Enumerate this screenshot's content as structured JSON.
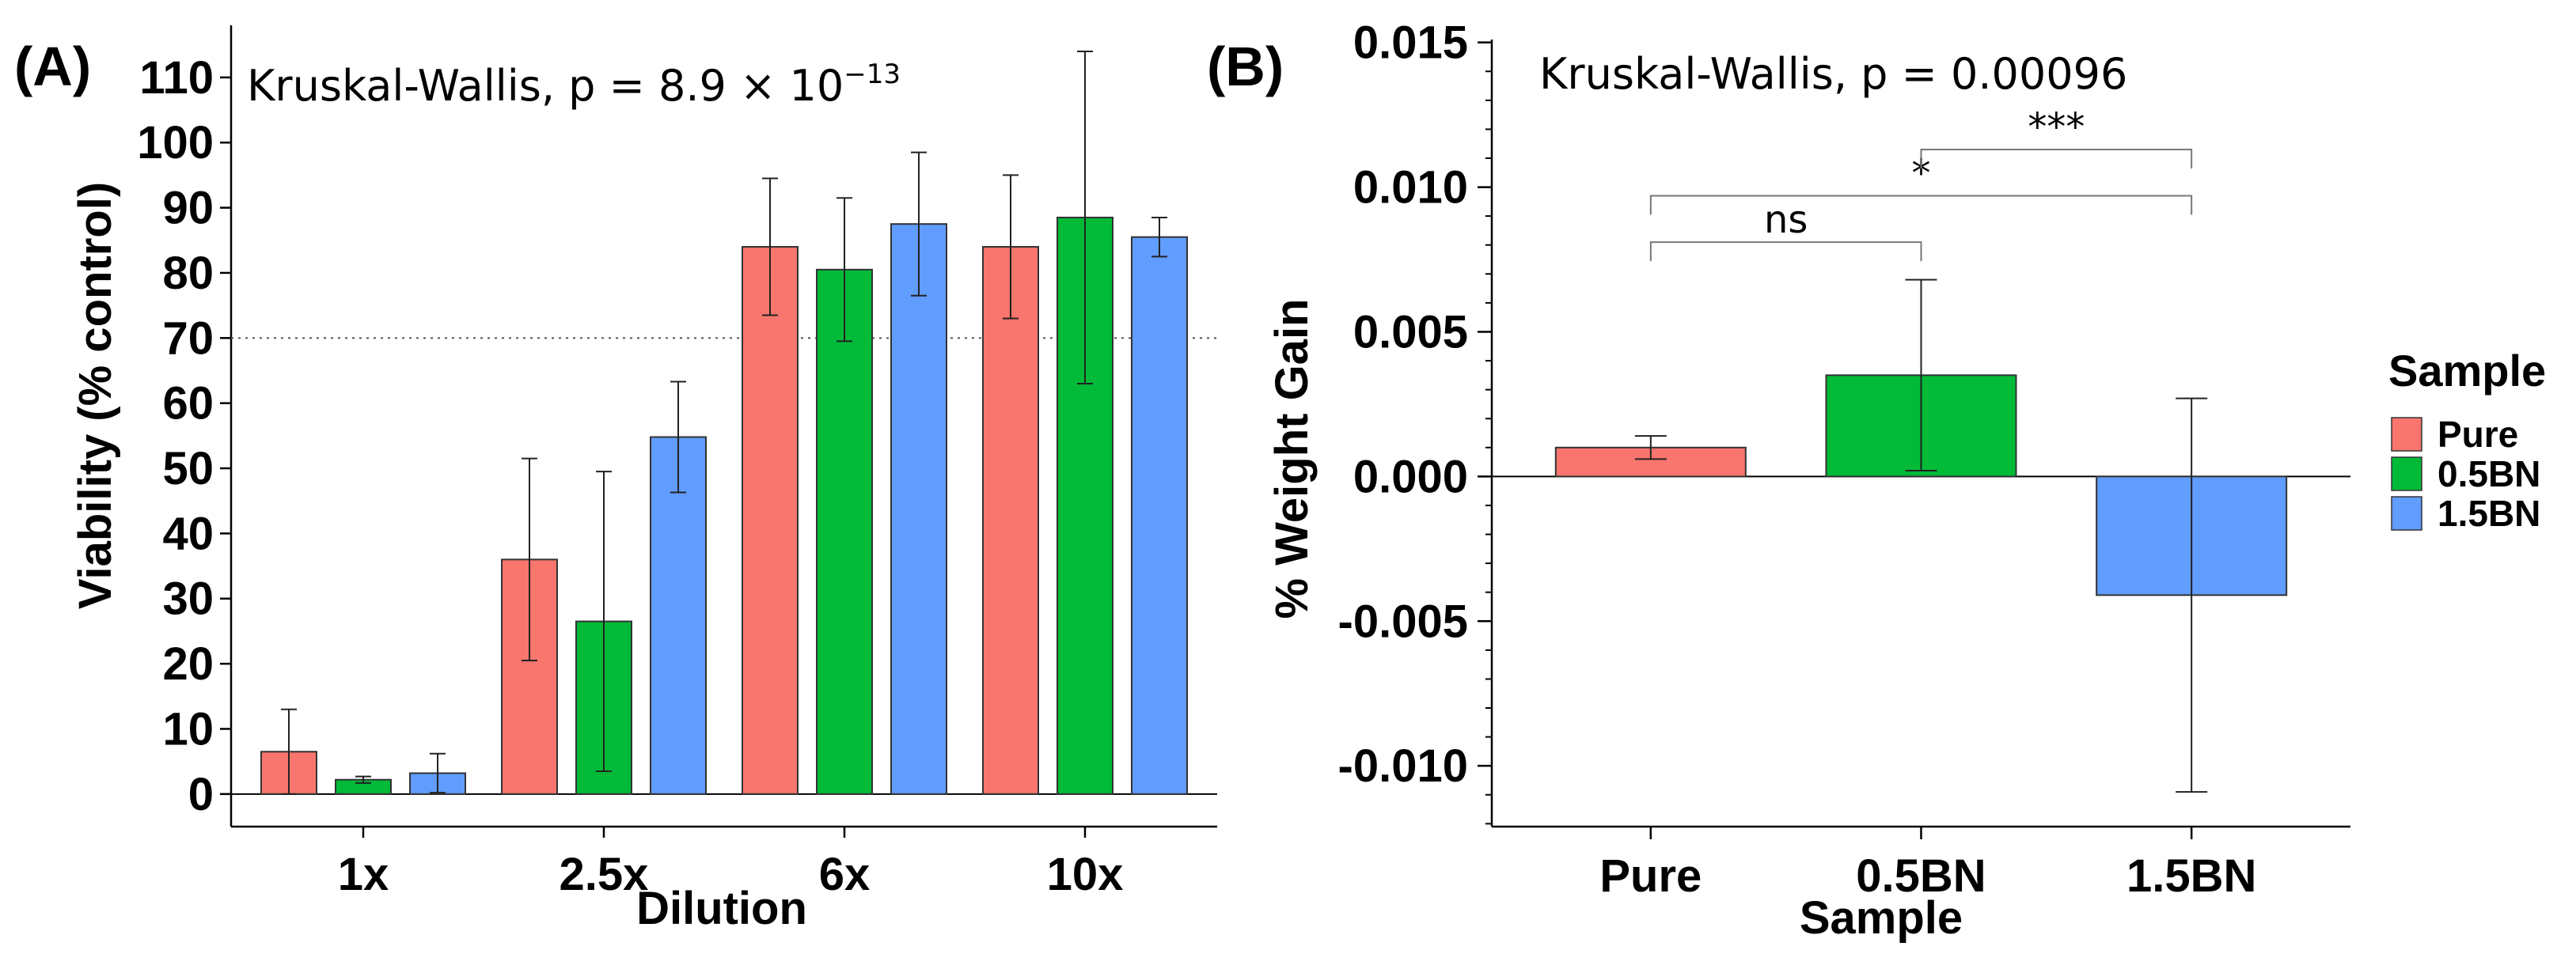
{
  "colors": {
    "Pure": "#F8766D",
    "0.5BN": "#00BA38",
    "1.5BN": "#619CFF"
  },
  "chart_data": [
    {
      "type": "bar",
      "panel_label": "(A)",
      "annotation_prefix": "Kruskal-Wallis, p = 8.9 × 10",
      "annotation_exponent": "−13",
      "xlabel": "Dilution",
      "ylabel": "Viability (% control)",
      "categories": [
        "1x",
        "2.5x",
        "6x",
        "10x"
      ],
      "ylim": [
        -5,
        118
      ],
      "yticks": [
        0,
        10,
        20,
        30,
        40,
        50,
        60,
        70,
        80,
        90,
        100,
        110
      ],
      "ytick_labels": [
        "0",
        "10",
        "20",
        "30",
        "40",
        "50",
        "60",
        "70",
        "80",
        "90",
        "100",
        "110"
      ],
      "reference_line": 70,
      "series": [
        {
          "name": "Pure",
          "values": [
            6.5,
            36,
            84,
            84
          ],
          "errors": [
            6.5,
            15.5,
            10.5,
            11
          ]
        },
        {
          "name": "0.5BN",
          "values": [
            2.2,
            26.5,
            80.5,
            88.5
          ],
          "errors": [
            0.5,
            23,
            11,
            25.5
          ]
        },
        {
          "name": "1.5BN",
          "values": [
            3.2,
            54.8,
            87.5,
            85.5
          ],
          "errors": [
            3,
            8.5,
            11,
            3
          ]
        }
      ]
    },
    {
      "type": "bar",
      "panel_label": "(B)",
      "annotation": "Kruskal-Wallis, p = 0.00096",
      "xlabel": "Sample",
      "ylabel": "% Weight Gain",
      "categories": [
        "Pure",
        "0.5BN",
        "1.5BN"
      ],
      "ylim": [
        -0.0121,
        0.0151
      ],
      "yticks": [
        -0.01,
        -0.005,
        0,
        0.005,
        0.01,
        0.015
      ],
      "ytick_labels": [
        "-0.010",
        "-0.005",
        "0.000",
        "0.005",
        "0.010",
        "0.015"
      ],
      "reference_line": 0,
      "values": [
        0.001,
        0.0035,
        -0.0041
      ],
      "errors": [
        0.0004,
        0.0033,
        0.0068
      ],
      "comparisons": [
        {
          "from": "Pure",
          "to": "0.5BN",
          "label": "ns",
          "y": 0.0081
        },
        {
          "from": "Pure",
          "to": "1.5BN",
          "label": "*",
          "y": 0.0097
        },
        {
          "from": "0.5BN",
          "to": "1.5BN",
          "label": "***",
          "y": 0.0113
        }
      ],
      "legend": {
        "title": "Sample",
        "position": "right",
        "entries": [
          "Pure",
          "0.5BN",
          "1.5BN"
        ]
      }
    }
  ]
}
